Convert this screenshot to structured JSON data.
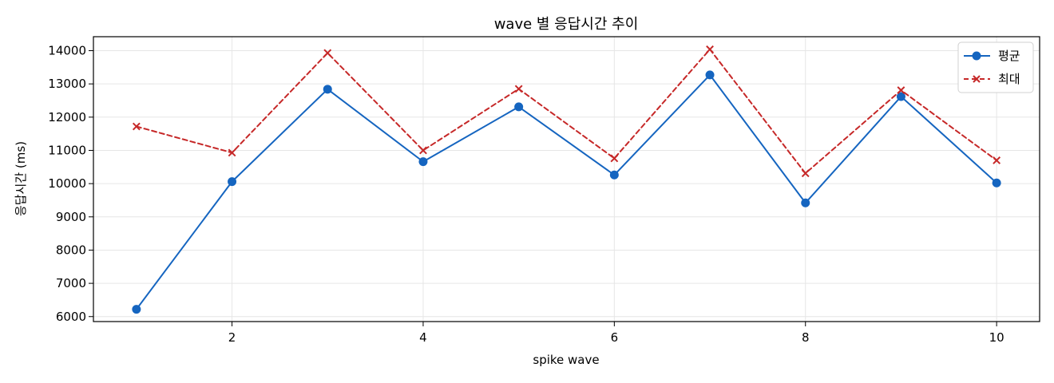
{
  "chart_data": {
    "type": "line",
    "title": "wave 별 응답시간 추이",
    "xlabel": "spike wave",
    "ylabel": "응답시간 (ms)",
    "x": [
      1,
      2,
      3,
      4,
      5,
      6,
      7,
      8,
      9,
      10
    ],
    "xlim": [
      0.55,
      10.45
    ],
    "ylim": [
      5850,
      14420
    ],
    "x_ticks": [
      2,
      4,
      6,
      8,
      10
    ],
    "y_ticks": [
      6000,
      7000,
      8000,
      9000,
      10000,
      11000,
      12000,
      13000,
      14000
    ],
    "grid": true,
    "legend_position": "top-right",
    "series": [
      {
        "name": "평균",
        "color": "#1565c0",
        "line_style": "solid",
        "marker": "circle",
        "values": [
          6220,
          10060,
          12840,
          10660,
          12310,
          10260,
          13270,
          9420,
          12620,
          10020
        ]
      },
      {
        "name": "최대",
        "color": "#c62828",
        "line_style": "dashed",
        "marker": "x",
        "values": [
          11720,
          10930,
          13930,
          11000,
          12850,
          10760,
          14040,
          10310,
          12810,
          10700
        ]
      }
    ]
  }
}
